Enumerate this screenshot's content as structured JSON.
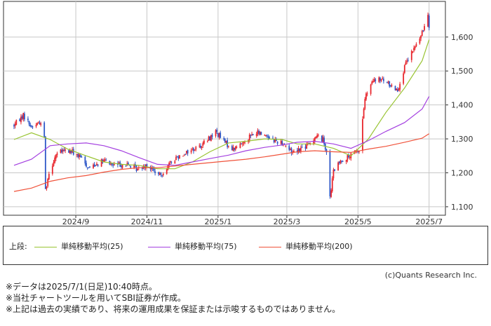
{
  "chart_data": {
    "type": "candlestick",
    "x_ticks": [
      "2024/9",
      "2024/11",
      "2025/1",
      "2025/3",
      "2025/5",
      "2025/7"
    ],
    "y_ticks": [
      "1,100",
      "1,200",
      "1,300",
      "1,400",
      "1,500",
      "1,600"
    ],
    "ylim": [
      1075,
      1705
    ],
    "xlim": [
      "2024-07-01",
      "2025-07-15"
    ],
    "grid": true,
    "colors": {
      "up": "#e8262d",
      "down": "#2f58c8",
      "ma25": "#99c433",
      "ma75": "#a441e0",
      "ma200": "#f0523a",
      "grid": "#c8c8c8"
    },
    "price_path": [
      [
        "2024-07-10",
        1340
      ],
      [
        "2024-07-18",
        1370
      ],
      [
        "2024-07-25",
        1335
      ],
      [
        "2024-08-01",
        1350
      ],
      [
        "2024-08-05",
        1310
      ],
      [
        "2024-08-06",
        1150
      ],
      [
        "2024-08-09",
        1200
      ],
      [
        "2024-08-15",
        1255
      ],
      [
        "2024-08-22",
        1265
      ],
      [
        "2024-08-29",
        1262
      ],
      [
        "2024-09-05",
        1245
      ],
      [
        "2024-09-12",
        1215
      ],
      [
        "2024-09-19",
        1228
      ],
      [
        "2024-09-26",
        1235
      ],
      [
        "2024-10-03",
        1222
      ],
      [
        "2024-10-10",
        1225
      ],
      [
        "2024-10-17",
        1222
      ],
      [
        "2024-10-24",
        1210
      ],
      [
        "2024-10-31",
        1225
      ],
      [
        "2024-11-05",
        1212
      ],
      [
        "2024-11-12",
        1190
      ],
      [
        "2024-11-19",
        1220
      ],
      [
        "2024-11-26",
        1245
      ],
      [
        "2024-12-03",
        1258
      ],
      [
        "2024-12-10",
        1268
      ],
      [
        "2024-12-17",
        1280
      ],
      [
        "2024-12-24",
        1300
      ],
      [
        "2024-12-30",
        1322
      ],
      [
        "2025-01-06",
        1292
      ],
      [
        "2025-01-14",
        1270
      ],
      [
        "2025-01-21",
        1285
      ],
      [
        "2025-01-28",
        1308
      ],
      [
        "2025-02-04",
        1318
      ],
      [
        "2025-02-12",
        1310
      ],
      [
        "2025-02-19",
        1295
      ],
      [
        "2025-02-26",
        1288
      ],
      [
        "2025-03-05",
        1262
      ],
      [
        "2025-03-12",
        1270
      ],
      [
        "2025-03-19",
        1280
      ],
      [
        "2025-03-26",
        1310
      ],
      [
        "2025-04-01",
        1298
      ],
      [
        "2025-04-04",
        1265
      ],
      [
        "2025-04-07",
        1125
      ],
      [
        "2025-04-10",
        1205
      ],
      [
        "2025-04-17",
        1238
      ],
      [
        "2025-04-24",
        1248
      ],
      [
        "2025-05-01",
        1265
      ],
      [
        "2025-05-02",
        1265
      ],
      [
        "2025-05-07",
        1420
      ],
      [
        "2025-05-14",
        1470
      ],
      [
        "2025-05-21",
        1475
      ],
      [
        "2025-05-28",
        1460
      ],
      [
        "2025-06-04",
        1445
      ],
      [
        "2025-06-11",
        1520
      ],
      [
        "2025-06-18",
        1565
      ],
      [
        "2025-06-25",
        1610
      ],
      [
        "2025-06-30",
        1670
      ],
      [
        "2025-07-01",
        1635
      ]
    ],
    "ma25": [
      [
        "2024-07-10",
        1298
      ],
      [
        "2024-07-25",
        1318
      ],
      [
        "2024-08-10",
        1298
      ],
      [
        "2024-08-25",
        1270
      ],
      [
        "2024-09-10",
        1250
      ],
      [
        "2024-09-25",
        1232
      ],
      [
        "2024-10-10",
        1225
      ],
      [
        "2024-10-25",
        1222
      ],
      [
        "2024-11-10",
        1212
      ],
      [
        "2024-11-25",
        1212
      ],
      [
        "2024-12-10",
        1232
      ],
      [
        "2024-12-25",
        1262
      ],
      [
        "2025-01-10",
        1288
      ],
      [
        "2025-01-25",
        1293
      ],
      [
        "2025-02-10",
        1300
      ],
      [
        "2025-02-25",
        1298
      ],
      [
        "2025-03-10",
        1285
      ],
      [
        "2025-03-25",
        1285
      ],
      [
        "2025-04-10",
        1272
      ],
      [
        "2025-04-25",
        1250
      ],
      [
        "2025-05-10",
        1300
      ],
      [
        "2025-05-25",
        1378
      ],
      [
        "2025-06-10",
        1450
      ],
      [
        "2025-06-25",
        1530
      ],
      [
        "2025-07-01",
        1592
      ]
    ],
    "ma75": [
      [
        "2024-07-10",
        1222
      ],
      [
        "2024-07-25",
        1240
      ],
      [
        "2024-08-10",
        1280
      ],
      [
        "2024-08-25",
        1285
      ],
      [
        "2024-09-10",
        1288
      ],
      [
        "2024-09-25",
        1280
      ],
      [
        "2024-10-10",
        1265
      ],
      [
        "2024-10-25",
        1245
      ],
      [
        "2024-11-10",
        1225
      ],
      [
        "2024-11-25",
        1222
      ],
      [
        "2024-12-10",
        1232
      ],
      [
        "2024-12-25",
        1242
      ],
      [
        "2025-01-10",
        1252
      ],
      [
        "2025-01-25",
        1265
      ],
      [
        "2025-02-10",
        1275
      ],
      [
        "2025-02-25",
        1282
      ],
      [
        "2025-03-10",
        1290
      ],
      [
        "2025-03-25",
        1293
      ],
      [
        "2025-04-10",
        1285
      ],
      [
        "2025-04-25",
        1272
      ],
      [
        "2025-05-10",
        1295
      ],
      [
        "2025-05-25",
        1322
      ],
      [
        "2025-06-10",
        1348
      ],
      [
        "2025-06-25",
        1388
      ],
      [
        "2025-07-01",
        1425
      ]
    ],
    "ma200": [
      [
        "2024-07-10",
        1145
      ],
      [
        "2024-07-25",
        1155
      ],
      [
        "2024-08-10",
        1175
      ],
      [
        "2024-08-25",
        1185
      ],
      [
        "2024-09-10",
        1192
      ],
      [
        "2024-09-25",
        1202
      ],
      [
        "2024-10-10",
        1210
      ],
      [
        "2024-10-25",
        1215
      ],
      [
        "2024-11-10",
        1215
      ],
      [
        "2024-11-25",
        1220
      ],
      [
        "2024-12-10",
        1225
      ],
      [
        "2024-12-25",
        1230
      ],
      [
        "2025-01-10",
        1235
      ],
      [
        "2025-01-25",
        1240
      ],
      [
        "2025-02-10",
        1247
      ],
      [
        "2025-02-25",
        1255
      ],
      [
        "2025-03-10",
        1262
      ],
      [
        "2025-03-25",
        1265
      ],
      [
        "2025-04-10",
        1262
      ],
      [
        "2025-04-25",
        1260
      ],
      [
        "2025-05-10",
        1270
      ],
      [
        "2025-05-25",
        1278
      ],
      [
        "2025-06-10",
        1290
      ],
      [
        "2025-06-25",
        1302
      ],
      [
        "2025-07-01",
        1315
      ]
    ]
  },
  "legend": {
    "prefix": "上段:",
    "items": [
      {
        "label": "単純移動平均(25)",
        "color": "#99c433"
      },
      {
        "label": "単純移動平均(75)",
        "color": "#a441e0"
      },
      {
        "label": "単純移動平均(200)",
        "color": "#f0523a"
      }
    ]
  },
  "credit": "(c)Quants Research Inc.",
  "notes": [
    "※データは2025/7/1(日足)10:40時点。",
    "※当社チャートツールを用いてSBI証券が作成。",
    "※上記は過去の実績であり、将来の運用成果を保証または示唆するものではありません。"
  ]
}
